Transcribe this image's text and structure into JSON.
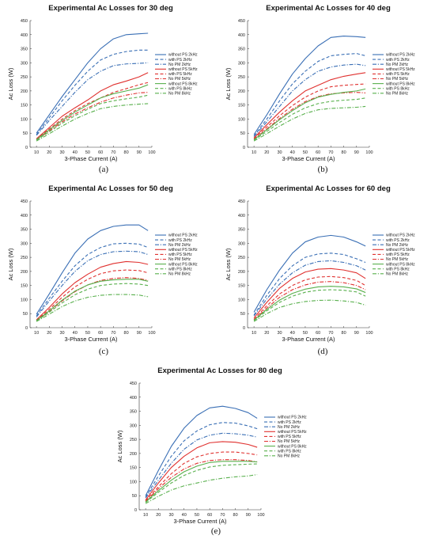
{
  "chart_data": [
    {
      "type": "line",
      "title": "Experimental Ac Losses for 30 deg",
      "xlabel": "3-Phase Current (A)",
      "ylabel": "Ac Loss (W)",
      "xlim": [
        5,
        100
      ],
      "ylim": [
        0,
        450
      ],
      "xticks": [
        10,
        20,
        30,
        40,
        50,
        60,
        70,
        80,
        90,
        100
      ],
      "yticks": [
        0,
        50,
        100,
        150,
        200,
        250,
        300,
        350,
        400,
        450
      ],
      "grid": false,
      "legend": "right",
      "caption": "(a)",
      "x": [
        10,
        20,
        30,
        40,
        50,
        60,
        70,
        80,
        90,
        97
      ],
      "series": [
        {
          "name": "without PS 2kHz",
          "values": [
            50,
            115,
            180,
            240,
            300,
            350,
            385,
            400,
            403,
            405
          ]
        },
        {
          "name": "with PS 2kHz",
          "values": [
            45,
            105,
            165,
            220,
            270,
            310,
            330,
            340,
            345,
            345
          ]
        },
        {
          "name": "No PM 2kHz",
          "values": [
            42,
            95,
            145,
            195,
            240,
            270,
            290,
            296,
            298,
            300
          ]
        },
        {
          "name": "without PS 5kHz",
          "values": [
            30,
            70,
            110,
            140,
            168,
            200,
            222,
            235,
            250,
            265
          ]
        },
        {
          "name": "with PS 5kHz",
          "values": [
            28,
            65,
            100,
            130,
            155,
            175,
            195,
            208,
            222,
            230
          ]
        },
        {
          "name": "No PM 5kHz",
          "values": [
            26,
            58,
            90,
            118,
            140,
            160,
            175,
            185,
            193,
            195
          ]
        },
        {
          "name": "without PS 8kHz",
          "values": [
            27,
            62,
            95,
            125,
            150,
            175,
            190,
            200,
            210,
            222
          ]
        },
        {
          "name": "with PS 8kHz",
          "values": [
            25,
            55,
            85,
            112,
            135,
            155,
            165,
            172,
            178,
            185
          ]
        },
        {
          "name": "No PM 8kHz",
          "values": [
            22,
            48,
            75,
            100,
            120,
            137,
            145,
            150,
            153,
            155
          ]
        }
      ]
    },
    {
      "type": "line",
      "title": "Experimental Ac Losses for 40 deg",
      "xlabel": "3-Phase Current (A)",
      "ylabel": "Ac Loss (W)",
      "xlim": [
        5,
        100
      ],
      "ylim": [
        0,
        450
      ],
      "xticks": [
        10,
        20,
        30,
        40,
        50,
        60,
        70,
        80,
        90,
        100
      ],
      "yticks": [
        0,
        50,
        100,
        150,
        200,
        250,
        300,
        350,
        400,
        450
      ],
      "grid": false,
      "legend": "right",
      "caption": "(b)",
      "x": [
        10,
        20,
        30,
        40,
        50,
        60,
        70,
        80,
        90,
        97
      ],
      "series": [
        {
          "name": "without PS 2kHz",
          "values": [
            45,
            115,
            190,
            260,
            315,
            360,
            390,
            395,
            393,
            390
          ]
        },
        {
          "name": "with PS 2kHz",
          "values": [
            40,
            100,
            165,
            225,
            270,
            305,
            325,
            330,
            333,
            325
          ]
        },
        {
          "name": "No PM 2kHz",
          "values": [
            38,
            90,
            145,
            200,
            240,
            270,
            285,
            292,
            295,
            290
          ]
        },
        {
          "name": "without PS 5kHz",
          "values": [
            33,
            80,
            125,
            165,
            200,
            220,
            240,
            252,
            260,
            265
          ]
        },
        {
          "name": "with PS 5kHz",
          "values": [
            30,
            72,
            112,
            148,
            178,
            200,
            215,
            220,
            223,
            225
          ]
        },
        {
          "name": "No PM 5kHz",
          "values": [
            28,
            65,
            102,
            135,
            162,
            180,
            190,
            193,
            195,
            193
          ]
        },
        {
          "name": "without PS 8kHz",
          "values": [
            27,
            62,
            98,
            130,
            158,
            178,
            188,
            195,
            200,
            207
          ]
        },
        {
          "name": "with PS 8kHz",
          "values": [
            25,
            56,
            88,
            117,
            140,
            155,
            163,
            167,
            170,
            175
          ]
        },
        {
          "name": "No PM 8kHz",
          "values": [
            22,
            48,
            75,
            100,
            120,
            133,
            138,
            140,
            142,
            145
          ]
        }
      ]
    },
    {
      "type": "line",
      "title": "Experimental Ac Losses for 50 deg",
      "xlabel": "3-Phase Current (A)",
      "ylabel": "Ac Loss (W)",
      "xlim": [
        5,
        100
      ],
      "ylim": [
        0,
        450
      ],
      "xticks": [
        10,
        20,
        30,
        40,
        50,
        60,
        70,
        80,
        90,
        100
      ],
      "yticks": [
        0,
        50,
        100,
        150,
        200,
        250,
        300,
        350,
        400,
        450
      ],
      "grid": false,
      "legend": "right",
      "caption": "(c)",
      "x": [
        10,
        20,
        30,
        40,
        50,
        60,
        70,
        80,
        90,
        97
      ],
      "series": [
        {
          "name": "without PS 2kHz",
          "values": [
            48,
            120,
            195,
            265,
            315,
            345,
            360,
            365,
            365,
            345
          ]
        },
        {
          "name": "with PS 2kHz",
          "values": [
            42,
            105,
            165,
            220,
            260,
            285,
            298,
            300,
            297,
            285
          ]
        },
        {
          "name": "No PM 2kHz",
          "values": [
            38,
            95,
            150,
            200,
            238,
            260,
            270,
            272,
            270,
            260
          ]
        },
        {
          "name": "without PS 5kHz",
          "values": [
            28,
            72,
            120,
            160,
            190,
            215,
            228,
            235,
            232,
            225
          ]
        },
        {
          "name": "with PS 5kHz",
          "values": [
            26,
            65,
            108,
            145,
            172,
            192,
            202,
            205,
            203,
            195
          ]
        },
        {
          "name": "No PM 5kHz",
          "values": [
            24,
            58,
            95,
            128,
            152,
            168,
            175,
            178,
            175,
            168
          ]
        },
        {
          "name": "without PS 8kHz",
          "values": [
            25,
            60,
            98,
            130,
            152,
            165,
            170,
            172,
            172,
            165
          ]
        },
        {
          "name": "with PS 8kHz",
          "values": [
            24,
            55,
            88,
            117,
            137,
            150,
            155,
            157,
            155,
            150
          ]
        },
        {
          "name": "No PM 8kHz",
          "values": [
            22,
            48,
            75,
            95,
            108,
            115,
            118,
            118,
            116,
            110
          ]
        }
      ]
    },
    {
      "type": "line",
      "title": "Experimental Ac Losses for 60 deg",
      "xlabel": "3-Phase Current (A)",
      "ylabel": "Ac Loss (W)",
      "xlim": [
        5,
        100
      ],
      "ylim": [
        0,
        450
      ],
      "xticks": [
        10,
        20,
        30,
        40,
        50,
        60,
        70,
        80,
        90,
        100
      ],
      "yticks": [
        0,
        50,
        100,
        150,
        200,
        250,
        300,
        350,
        400,
        450
      ],
      "grid": false,
      "legend": "right",
      "caption": "(d)",
      "x": [
        10,
        20,
        30,
        40,
        50,
        60,
        70,
        80,
        90,
        97
      ],
      "series": [
        {
          "name": "without PS 2kHz",
          "values": [
            55,
            135,
            205,
            265,
            305,
            322,
            328,
            322,
            305,
            290
          ]
        },
        {
          "name": "with PS 2kHz",
          "values": [
            45,
            115,
            175,
            220,
            250,
            262,
            265,
            260,
            245,
            232
          ]
        },
        {
          "name": "No PM 2kHz",
          "values": [
            42,
            102,
            155,
            195,
            222,
            235,
            238,
            232,
            220,
            205
          ]
        },
        {
          "name": "without PS 5kHz",
          "values": [
            35,
            90,
            140,
            175,
            198,
            208,
            210,
            205,
            195,
            175
          ]
        },
        {
          "name": "with PS 5kHz",
          "values": [
            30,
            78,
            120,
            150,
            170,
            180,
            182,
            178,
            168,
            150
          ]
        },
        {
          "name": "No PM 5kHz",
          "values": [
            28,
            70,
            108,
            135,
            152,
            162,
            164,
            160,
            150,
            135
          ]
        },
        {
          "name": "without PS 8kHz",
          "values": [
            27,
            65,
            98,
            122,
            137,
            145,
            147,
            145,
            138,
            125
          ]
        },
        {
          "name": "with PS 8kHz",
          "values": [
            25,
            60,
            90,
            112,
            126,
            133,
            135,
            133,
            127,
            112
          ]
        },
        {
          "name": "No PM 8kHz",
          "values": [
            22,
            50,
            72,
            85,
            93,
            97,
            98,
            95,
            90,
            80
          ]
        }
      ]
    },
    {
      "type": "line",
      "title": "Experimental Ac Losses for 80 deg",
      "xlabel": "3-Phase Current (A)",
      "ylabel": "Ac Loss (W)",
      "xlim": [
        5,
        100
      ],
      "ylim": [
        0,
        450
      ],
      "xticks": [
        10,
        20,
        30,
        40,
        50,
        60,
        70,
        80,
        90,
        100
      ],
      "yticks": [
        0,
        50,
        100,
        150,
        200,
        250,
        300,
        350,
        400,
        450
      ],
      "grid": false,
      "legend": "right",
      "caption": "(e)",
      "x": [
        10,
        20,
        30,
        40,
        50,
        60,
        70,
        80,
        90,
        97
      ],
      "series": [
        {
          "name": "without PS 2kHz",
          "values": [
            50,
            140,
            225,
            290,
            335,
            362,
            368,
            360,
            345,
            325
          ]
        },
        {
          "name": "with PS 2kHz",
          "values": [
            45,
            120,
            190,
            245,
            280,
            302,
            310,
            308,
            298,
            288
          ]
        },
        {
          "name": "No PM 2kHz",
          "values": [
            42,
            105,
            165,
            215,
            248,
            265,
            272,
            270,
            265,
            258
          ]
        },
        {
          "name": "without PS 5kHz",
          "values": [
            35,
            95,
            150,
            190,
            220,
            238,
            242,
            240,
            232,
            222
          ]
        },
        {
          "name": "with PS 5kHz",
          "values": [
            32,
            82,
            128,
            165,
            188,
            200,
            205,
            205,
            200,
            195
          ]
        },
        {
          "name": "No PM 5kHz",
          "values": [
            30,
            75,
            115,
            145,
            165,
            175,
            178,
            178,
            175,
            170
          ]
        },
        {
          "name": "without PS 8kHz",
          "values": [
            28,
            68,
            105,
            135,
            155,
            168,
            172,
            172,
            172,
            170
          ]
        },
        {
          "name": "with PS 8kHz",
          "values": [
            26,
            62,
            95,
            122,
            140,
            152,
            158,
            160,
            162,
            163
          ]
        },
        {
          "name": "No PM 8kHz",
          "values": [
            22,
            48,
            70,
            85,
            95,
            105,
            112,
            117,
            120,
            125
          ]
        }
      ]
    }
  ],
  "style": {
    "series_colors": [
      "#3a6fb5",
      "#3a6fb5",
      "#3a6fb5",
      "#e0312f",
      "#e0312f",
      "#e0312f",
      "#59b04d",
      "#59b04d",
      "#59b04d"
    ],
    "series_dashes": [
      "solid",
      "dashed",
      "dashdot",
      "solid",
      "dashed",
      "dashdot",
      "solid",
      "dashed",
      "dashdot"
    ]
  }
}
